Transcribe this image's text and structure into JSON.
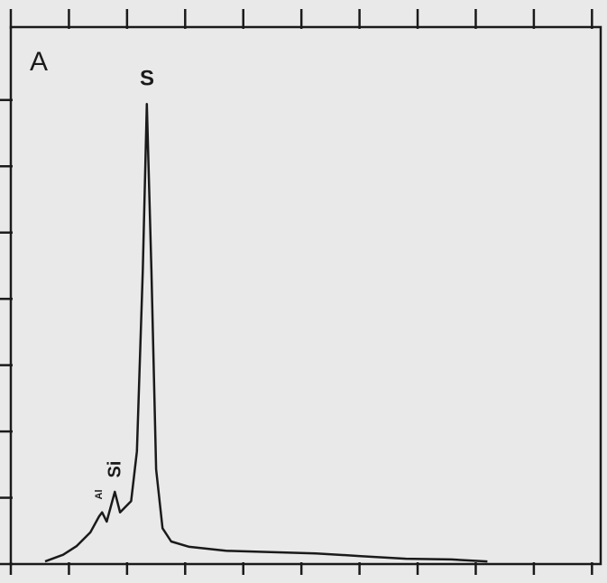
{
  "chart_data": {
    "type": "line",
    "annotations": [
      "A",
      "S",
      "Si",
      "Al"
    ],
    "x": [
      0.59,
      0.9,
      1.13,
      1.37,
      1.52,
      1.57,
      1.65,
      1.79,
      1.88,
      2.07,
      2.17,
      2.27,
      2.34,
      2.42,
      2.5,
      2.61,
      2.76,
      3.07,
      3.7,
      4.47,
      5.25,
      6.02,
      6.8,
      7.58,
      8.2
    ],
    "series": [
      {
        "color": "#1a1a1a",
        "values": [
          0.04,
          0.14,
          0.27,
          0.48,
          0.72,
          0.78,
          0.64,
          1.09,
          0.78,
          0.95,
          1.7,
          4.42,
          6.94,
          4.42,
          1.43,
          0.54,
          0.34,
          0.26,
          0.2,
          0.18,
          0.16,
          0.12,
          0.08,
          0.07,
          0.04
        ]
      }
    ],
    "xlim": [
      0,
      10.15
    ],
    "xticks": [
      0,
      1,
      2,
      3,
      4,
      5,
      6,
      7,
      8,
      9,
      10
    ],
    "ylim": [
      0,
      8.1
    ],
    "yticks": [
      0,
      1,
      2,
      3,
      4,
      5,
      6,
      7
    ]
  }
}
